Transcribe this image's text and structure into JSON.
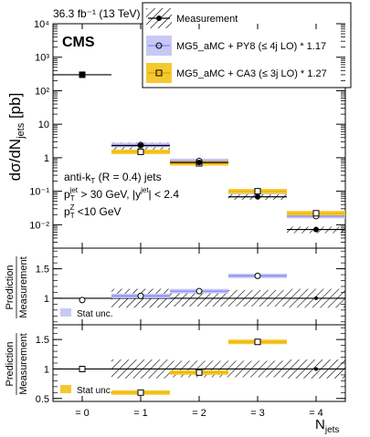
{
  "header": {
    "lumi": "36.3 fb⁻¹ (13 TeV)",
    "experiment": "CMS"
  },
  "colors": {
    "pred1": "#8080ff",
    "pred1_band": "#c8c8f5",
    "pred2": "#f0b400",
    "pred2_band": "#f5c830",
    "meas": "#000000"
  },
  "legend": [
    {
      "label": "Measurement",
      "style": "data"
    },
    {
      "label": "MG5_aMC + PY8 (≤ 4j LO) * 1.17",
      "style": "open-circle"
    },
    {
      "label": "MG5_aMC + CA3 (≤ 3j LO) * 1.27",
      "style": "open-square"
    }
  ],
  "selection": {
    "line1": "anti-k",
    "line1_sub": "T",
    "line1_rest": " (R = 0.4) jets",
    "line2": "p",
    "line2_sub": "T",
    "line2_sup": "jet",
    "line2_rest": " > 30 GeV, |y",
    "line2_sup2": "jet",
    "line2_end": "| < 2.4",
    "line3": "p",
    "line3_sub": "T",
    "line3_sup": "Z",
    "line3_rest": " <10 GeV"
  },
  "axes": {
    "main_ylabel": "dσ/dN",
    "main_ylabel_sub": "jets",
    "main_ylabel_unit": " [pb]",
    "ratio_ylabel_top": "Prediction",
    "ratio_ylabel_bottom": "Measurement",
    "xlabel": "N",
    "xlabel_sub": "jets",
    "stat_unc": "Stat unc."
  },
  "chart_data": [
    {
      "type": "scatter",
      "title": "",
      "yscale": "log",
      "ylim": [
        0.002,
        10000
      ],
      "xlim": [
        -0.5,
        4.5
      ],
      "categories": [
        "= 0",
        "= 1",
        "= 2",
        "= 3",
        "= 4"
      ],
      "yticks": [
        "10⁻²",
        "10⁻¹",
        "1",
        "10",
        "10²",
        "10³",
        "10⁴"
      ],
      "series": [
        {
          "name": "Measurement",
          "values": [
            300,
            2.3,
            0.72,
            0.068,
            0.0072
          ]
        },
        {
          "name": "MG5_aMC + PY8 (≤ 4j LO) * 1.17",
          "values": [
            null,
            2.4,
            0.8,
            0.095,
            0.018
          ]
        },
        {
          "name": "MG5_aMC + CA3 (≤ 3j LO) * 1.27",
          "values": [
            300,
            1.5,
            0.68,
            0.1,
            0.022
          ]
        }
      ],
      "meas_sys_rel": [
        0.0,
        0.25,
        0.15,
        0.18,
        0.22
      ]
    },
    {
      "type": "scatter",
      "title": "",
      "ylim": [
        0.55,
        1.85
      ],
      "yticks": [
        "1",
        "1.5"
      ],
      "xlim": [
        -0.5,
        4.5
      ],
      "series": [
        {
          "name": "MG5_aMC + PY8 (≤ 4j LO) * 1.17",
          "values": [
            0.97,
            1.04,
            1.12,
            1.38,
            null
          ]
        }
      ],
      "meas_unc": [
        0.0,
        0.16,
        0.14,
        0.14,
        0.16
      ]
    },
    {
      "type": "scatter",
      "title": "",
      "ylim": [
        0.45,
        1.75
      ],
      "yticks": [
        "0.5",
        "1",
        "1.5"
      ],
      "xlim": [
        -0.5,
        4.5
      ],
      "series": [
        {
          "name": "MG5_aMC + CA3 (≤ 3j LO) * 1.27",
          "values": [
            1.0,
            0.6,
            0.94,
            1.46,
            null
          ]
        }
      ],
      "meas_unc": [
        0.0,
        0.16,
        0.14,
        0.14,
        0.16
      ]
    }
  ]
}
